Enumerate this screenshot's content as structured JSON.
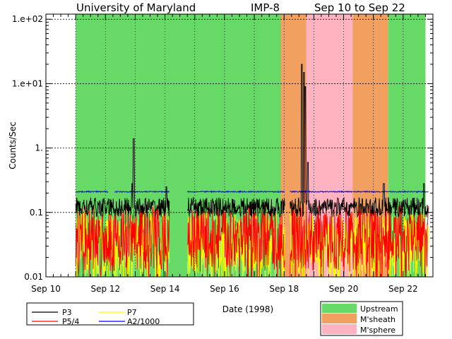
{
  "chart_data": {
    "type": "line",
    "title_left": "University of Maryland",
    "title_mid": "IMP-8",
    "title_right": "Sep 10 to Sep 22",
    "xlabel": "Date (1998)",
    "ylabel": "Counts/Sec",
    "yscale": "log",
    "ylim": [
      0.01,
      120
    ],
    "xlim": [
      10.0,
      23.0
    ],
    "x_tick_labels": [
      "Sep 10",
      "Sep 12",
      "Sep 14",
      "Sep 16",
      "Sep 18",
      "Sep 20",
      "Sep 22"
    ],
    "y_tick_labels": [
      "0.01",
      "0.1",
      "1.",
      "1.e+01",
      "1.e+02"
    ],
    "grid": true,
    "regions": [
      {
        "label": "Upstream",
        "x0": 11.0,
        "x1": 17.9,
        "color": "#66d966"
      },
      {
        "label": "M'sheath",
        "x0": 17.9,
        "x1": 18.75,
        "color": "#f2a060"
      },
      {
        "label": "M'sphere",
        "x0": 18.75,
        "x1": 20.3,
        "color": "#ffb3c1"
      },
      {
        "label": "M'sheath",
        "x0": 20.3,
        "x1": 21.5,
        "color": "#f2a060"
      },
      {
        "label": "Upstream",
        "x0": 21.5,
        "x1": 22.75,
        "color": "#66d966"
      }
    ],
    "gaps": [
      [
        14.15,
        14.75
      ],
      [
        18.03,
        18.2
      ]
    ],
    "series": [
      {
        "name": "P3",
        "color": "#000000",
        "base": 0.12,
        "spikes": [
          [
            12.95,
            1.4
          ],
          [
            12.9,
            0.28
          ],
          [
            14.05,
            0.25
          ],
          [
            18.6,
            20
          ],
          [
            18.67,
            15
          ],
          [
            18.72,
            9
          ],
          [
            18.8,
            0.6
          ],
          [
            21.35,
            0.28
          ],
          [
            22.7,
            0.28
          ]
        ]
      },
      {
        "name": "P5/4",
        "color": "#ff0000",
        "base": 0.04,
        "spikes": []
      },
      {
        "name": "P7",
        "color": "#ffff00",
        "base": 0.03,
        "spikes": []
      },
      {
        "name": "A2/1000",
        "color": "#0000ff",
        "base": 0.21,
        "spikes": []
      }
    ],
    "legend_left": {
      "placement": "bottom-left",
      "items": [
        "P3",
        "P7",
        "P5/4",
        "A2/1000"
      ]
    },
    "legend_right": {
      "placement": "bottom-right",
      "items": [
        "Upstream",
        "M'sheath",
        "M'sphere"
      ]
    }
  }
}
